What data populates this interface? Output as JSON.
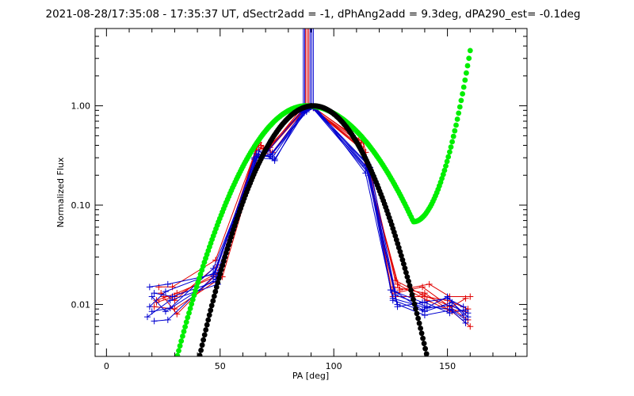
{
  "chart_data": {
    "type": "line",
    "title": "2021-08-28/17:35:08 - 17:35:37 UT, dSectr2add = -1, dPhAng2add = 9.3deg, dPA290_est= -0.1deg",
    "xlabel": "PA [deg]",
    "ylabel": "Normalized Flux",
    "xlim": [
      -5,
      185
    ],
    "ylim": [
      0.003,
      6
    ],
    "yscale": "log",
    "x_ticks": [
      0,
      50,
      100,
      150
    ],
    "x_tick_labels": [
      "0",
      "50",
      "100",
      "150"
    ],
    "y_ticks": [
      0.01,
      0.1,
      1.0
    ],
    "y_tick_labels": [
      "0.01",
      "0.10",
      "1.00"
    ],
    "grid": false,
    "legend": "none",
    "colors": {
      "red": "#e00000",
      "blue": "#0000d0",
      "green": "#00ee00",
      "black": "#000000"
    },
    "vertical_lines": {
      "red": [
        87.6,
        88.3,
        89.0
      ],
      "blue": [
        86.6,
        87.2,
        89.6,
        90.3,
        91.0
      ]
    },
    "series": [
      {
        "color": "red",
        "x": [
          22,
          31,
          50,
          67,
          71,
          86,
          89,
          112,
          126,
          140,
          150,
          158
        ],
        "y": [
          0.011,
          0.013,
          0.02,
          0.42,
          0.36,
          0.95,
          1.0,
          0.42,
          0.015,
          0.013,
          0.009,
          0.0085
        ]
      },
      {
        "color": "red",
        "x": [
          24,
          30,
          49,
          66,
          72,
          87,
          90,
          113,
          127,
          139,
          151,
          159
        ],
        "y": [
          0.013,
          0.011,
          0.025,
          0.36,
          0.38,
          0.92,
          0.98,
          0.36,
          0.013,
          0.015,
          0.0095,
          0.007
        ]
      },
      {
        "color": "red",
        "x": [
          21,
          30,
          51,
          68,
          73,
          88,
          91,
          111,
          128,
          141,
          152,
          160
        ],
        "y": [
          0.0095,
          0.009,
          0.019,
          0.4,
          0.34,
          0.97,
          0.97,
          0.45,
          0.016,
          0.011,
          0.0085,
          0.006
        ]
      },
      {
        "color": "red",
        "x": [
          23,
          29,
          48,
          67,
          70,
          86,
          89,
          114,
          126,
          140,
          150,
          159
        ],
        "y": [
          0.015,
          0.015,
          0.028,
          0.43,
          0.33,
          0.9,
          1.0,
          0.34,
          0.012,
          0.012,
          0.011,
          0.009
        ]
      },
      {
        "color": "red",
        "x": [
          25,
          31,
          50,
          69,
          72,
          87,
          90,
          112,
          129,
          142,
          151,
          160
        ],
        "y": [
          0.012,
          0.008,
          0.022,
          0.37,
          0.4,
          0.94,
          0.99,
          0.39,
          0.014,
          0.016,
          0.012,
          0.012
        ]
      },
      {
        "color": "red",
        "x": [
          22,
          30,
          49,
          66,
          71,
          88,
          91,
          113,
          127,
          139,
          152,
          158
        ],
        "y": [
          0.0105,
          0.012,
          0.021,
          0.39,
          0.35,
          0.96,
          0.96,
          0.43,
          0.0175,
          0.0125,
          0.0095,
          0.0115
        ]
      },
      {
        "color": "blue",
        "x": [
          19,
          27,
          47,
          66,
          73,
          87,
          91,
          115,
          126,
          140,
          152,
          159
        ],
        "y": [
          0.015,
          0.016,
          0.02,
          0.33,
          0.3,
          0.88,
          0.98,
          0.22,
          0.011,
          0.0085,
          0.0105,
          0.0075
        ]
      },
      {
        "color": "blue",
        "x": [
          20,
          26,
          48,
          65,
          72,
          88,
          92,
          114,
          127,
          141,
          151,
          158
        ],
        "y": [
          0.012,
          0.0085,
          0.018,
          0.3,
          0.32,
          0.9,
          0.96,
          0.25,
          0.0125,
          0.0095,
          0.009,
          0.0065
        ]
      },
      {
        "color": "blue",
        "x": [
          18,
          28,
          49,
          67,
          74,
          86,
          90,
          116,
          125,
          139,
          150,
          157
        ],
        "y": [
          0.0075,
          0.011,
          0.016,
          0.35,
          0.28,
          0.86,
          0.99,
          0.2,
          0.014,
          0.0105,
          0.0115,
          0.0095
        ]
      },
      {
        "color": "blue",
        "x": [
          21,
          27,
          47,
          66,
          72,
          87,
          91,
          115,
          128,
          140,
          152,
          158
        ],
        "y": [
          0.0068,
          0.007,
          0.019,
          0.31,
          0.31,
          0.91,
          0.95,
          0.23,
          0.01,
          0.0078,
          0.0088,
          0.007
        ]
      },
      {
        "color": "blue",
        "x": [
          19,
          26,
          48,
          65,
          73,
          88,
          92,
          114,
          126,
          141,
          151,
          159
        ],
        "y": [
          0.0095,
          0.0135,
          0.021,
          0.29,
          0.33,
          0.87,
          0.97,
          0.21,
          0.0115,
          0.0092,
          0.0098,
          0.0082
        ]
      },
      {
        "color": "blue",
        "x": [
          20,
          28,
          47,
          67,
          71,
          86,
          90,
          116,
          127,
          139,
          150,
          157
        ],
        "y": [
          0.0085,
          0.0092,
          0.023,
          0.32,
          0.35,
          0.89,
          0.98,
          0.24,
          0.0135,
          0.0088,
          0.012,
          0.0078
        ]
      },
      {
        "color": "blue",
        "x": [
          21,
          29,
          48,
          66,
          74,
          87,
          91,
          115,
          128,
          140,
          151,
          158
        ],
        "y": [
          0.013,
          0.012,
          0.017,
          0.3,
          0.29,
          0.85,
          0.97,
          0.26,
          0.0095,
          0.0105,
          0.0082,
          0.0088
        ]
      }
    ],
    "fits": [
      {
        "color": "green",
        "style": "dots",
        "x_range": [
          25,
          160
        ],
        "points": 240,
        "curve": "1.0 at PA 88, Gaussian-like to 0.003 near PA 25, minimum 0.068 near PA 135, rising to 3.6 at PA 160"
      },
      {
        "color": "black",
        "style": "dots",
        "x_range": [
          40,
          145
        ],
        "points": 200,
        "curve": "1.0 at PA 91, symmetric Gaussian-like, 0.003 near PA 40 and PA 145"
      }
    ]
  }
}
